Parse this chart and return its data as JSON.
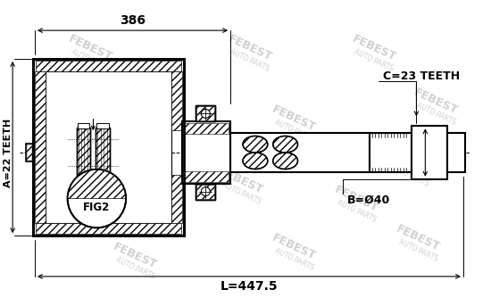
{
  "bg_color": "#ffffff",
  "line_color": "#000000",
  "watermark_color": "#d0d0d0",
  "label_A": "A=22 TEETH",
  "label_B": "B=Ø40",
  "label_C": "C=23 TEETH",
  "label_L": "L=447.5",
  "label_386": "386",
  "label_FIG2": "FIG2",
  "figsize": [
    5.5,
    3.43
  ],
  "dpi": 100
}
